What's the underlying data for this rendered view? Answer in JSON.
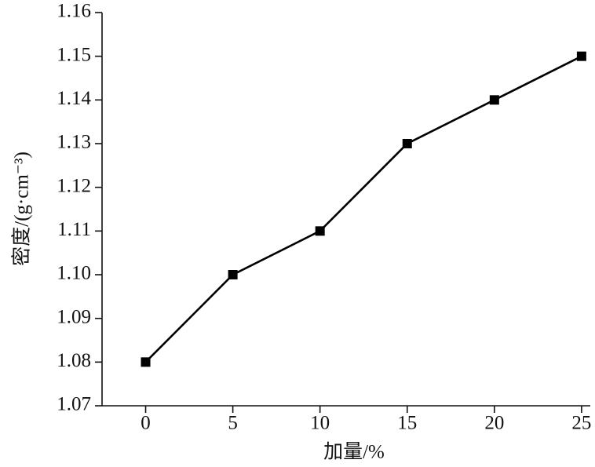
{
  "chart_data": {
    "type": "line",
    "y_label": "密度/(g·cm⁻³)",
    "x_label": "加量/%",
    "x": [
      0,
      5,
      10,
      15,
      20,
      25
    ],
    "values": [
      1.08,
      1.1,
      1.11,
      1.13,
      1.14,
      1.15
    ],
    "color": "#000000",
    "xlim": [
      -2.5,
      25.5
    ],
    "xticks": [
      0,
      5,
      10,
      15,
      20,
      25
    ],
    "ylim": [
      1.07,
      1.16
    ],
    "yticks": [
      1.07,
      1.08,
      1.09,
      {
        "value": 1.1,
        "label": "1.10"
      },
      1.11,
      1.12,
      1.13,
      1.14,
      1.15,
      1.16
    ],
    "marker": "square"
  }
}
